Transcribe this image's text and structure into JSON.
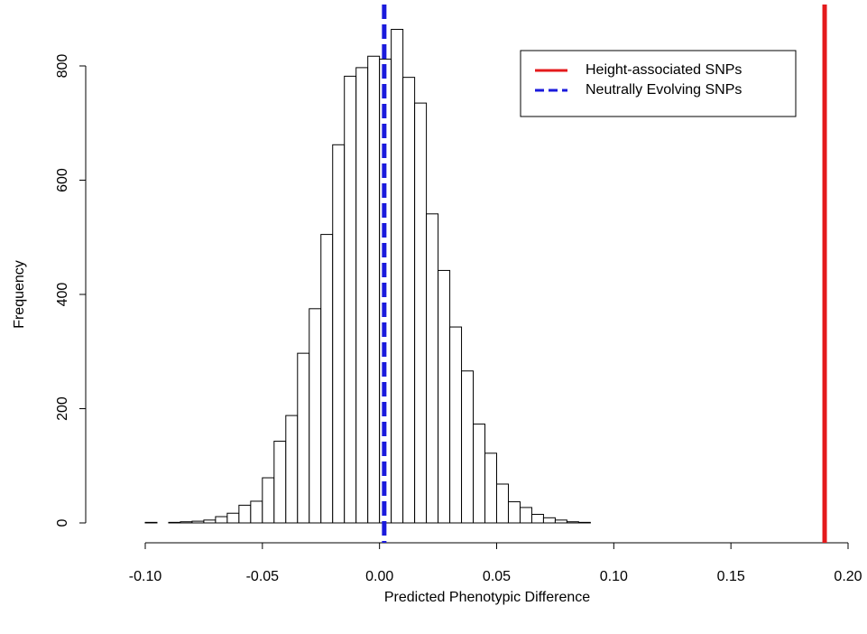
{
  "chart_data": {
    "type": "histogram",
    "xlabel": "Predicted Phenotypic Difference",
    "ylabel": "Frequency",
    "bins": [
      -0.1,
      -0.095,
      -0.09,
      -0.085,
      -0.08,
      -0.075,
      -0.07,
      -0.065,
      -0.06,
      -0.055,
      -0.05,
      -0.045,
      -0.04,
      -0.035,
      -0.03,
      -0.025,
      -0.02,
      -0.015,
      -0.01,
      -0.005,
      0,
      0.005,
      0.01,
      0.015,
      0.02,
      0.025,
      0.03,
      0.035,
      0.04,
      0.045,
      0.05,
      0.055,
      0.06,
      0.065,
      0.07,
      0.075,
      0.08,
      0.085,
      0.09
    ],
    "counts": [
      1,
      0,
      1,
      2,
      3,
      5,
      11,
      17,
      31,
      38,
      79,
      143,
      188,
      297,
      375,
      505,
      662,
      782,
      797,
      817,
      812,
      864,
      780,
      735,
      541,
      442,
      343,
      266,
      173,
      122,
      68,
      37,
      27,
      15,
      9,
      5,
      2,
      1
    ],
    "bar_color": "#ffffff",
    "series": [
      {
        "name": "Height-associated SNPs",
        "color": "#e41a1c",
        "x": 0.19,
        "dashed": false
      },
      {
        "name": "Neutrally Evolving SNPs",
        "color": "#1a1adc",
        "x": 0.002,
        "dashed": true
      }
    ],
    "xlim": [
      -0.1,
      0.2
    ],
    "xticks": [
      {
        "value": -0.1,
        "label": "-0.10"
      },
      -0.05,
      {
        "value": 0,
        "label": "0.00"
      },
      0.05,
      {
        "value": 0.1,
        "label": "0.10"
      },
      0.15,
      {
        "value": 0.2,
        "label": "0.20"
      }
    ],
    "ylim": [
      0,
      900
    ],
    "yticks": [
      0,
      200,
      400,
      600,
      800
    ],
    "legend": "top-right"
  }
}
